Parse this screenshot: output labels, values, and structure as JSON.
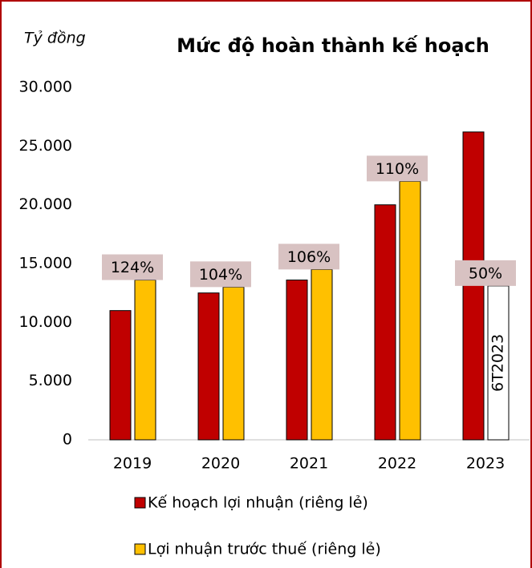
{
  "chart_data": {
    "type": "bar",
    "title": "Mức độ hoàn thành kế hoạch",
    "y_label": "Tỷ đồng",
    "categories": [
      "2019",
      "2020",
      "2021",
      "2022",
      "2023"
    ],
    "series": [
      {
        "name": "Kế hoạch lợi nhuận (riêng lẻ)",
        "color": "#c00000",
        "values": [
          11000,
          12500,
          13600,
          20000,
          26200
        ]
      },
      {
        "name": "Lợi nhuận trước thuế (riêng lẻ)",
        "color": "#ffc000",
        "colors": [
          "#ffc000",
          "#ffc000",
          "#ffc000",
          "#ffc000",
          "#ffffff"
        ],
        "values": [
          13600,
          13000,
          14500,
          22000,
          13100
        ]
      }
    ],
    "completion_labels": [
      "124%",
      "104%",
      "106%",
      "110%",
      "50%"
    ],
    "bar_note": "6T2023",
    "ylim": [
      0,
      30000
    ],
    "yticks": [
      0,
      {
        "value": 5000,
        "label": "5.000"
      },
      {
        "value": 10000,
        "label": "10.000"
      },
      {
        "value": 15000,
        "label": "15.000"
      },
      {
        "value": 20000,
        "label": "20.000"
      },
      {
        "value": 25000,
        "label": "25.000"
      },
      {
        "value": 30000,
        "label": "30.000"
      }
    ],
    "grid": false
  }
}
